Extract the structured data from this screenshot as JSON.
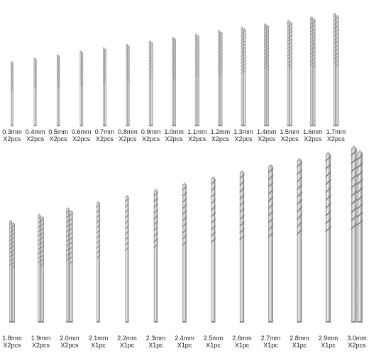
{
  "palette": {
    "background": "#ffffff",
    "metal_dark": "#8d8d8d",
    "metal_light": "#f2f2f2",
    "flute": "#6e6e6e"
  },
  "rows": [
    {
      "items": [
        {
          "size": "0.3mm",
          "qty": "X2pcs",
          "count": 2
        },
        {
          "size": "0.4mm",
          "qty": "X2pcs",
          "count": 2
        },
        {
          "size": "0.5mm",
          "qty": "X2pcs",
          "count": 2
        },
        {
          "size": "0.6mm",
          "qty": "X2pcs",
          "count": 2
        },
        {
          "size": "0.7mm",
          "qty": "X2pcs",
          "count": 2
        },
        {
          "size": "0.8mm",
          "qty": "X2pcs",
          "count": 2
        },
        {
          "size": "0.9mm",
          "qty": "X2pcs",
          "count": 2
        },
        {
          "size": "1.0mm",
          "qty": "X2pcs",
          "count": 2
        },
        {
          "size": "1.1mm",
          "qty": "X2pcs",
          "count": 2
        },
        {
          "size": "1.2mm",
          "qty": "X2pcs",
          "count": 2
        },
        {
          "size": "1.3mm",
          "qty": "X2pcs",
          "count": 2
        },
        {
          "size": "1.4mm",
          "qty": "X2pcs",
          "count": 2
        },
        {
          "size": "1.5mm",
          "qty": "X2pcs",
          "count": 2
        },
        {
          "size": "1.6mm",
          "qty": "X2pcs",
          "count": 2
        },
        {
          "size": "1.7mm",
          "qty": "X2pcs",
          "count": 2
        }
      ]
    },
    {
      "items": [
        {
          "size": "1.8mm",
          "qty": "X2pcs",
          "count": 2
        },
        {
          "size": "1.9mm",
          "qty": "X2pcs",
          "count": 2
        },
        {
          "size": "2.0mm",
          "qty": "X2pcs",
          "count": 2
        },
        {
          "size": "2.1mm",
          "qty": "X1pc",
          "count": 1
        },
        {
          "size": "2.2mm",
          "qty": "X1pc",
          "count": 1
        },
        {
          "size": "2.3mm",
          "qty": "X1pc",
          "count": 1
        },
        {
          "size": "2.4mm",
          "qty": "X1pc",
          "count": 1
        },
        {
          "size": "2.5mm",
          "qty": "X1pc",
          "count": 1
        },
        {
          "size": "2.6mm",
          "qty": "X1pc",
          "count": 1
        },
        {
          "size": "2.7mm",
          "qty": "X1pc",
          "count": 1
        },
        {
          "size": "2.8mm",
          "qty": "X1pc",
          "count": 1
        },
        {
          "size": "2.9mm",
          "qty": "X1pc",
          "count": 1
        },
        {
          "size": "3.0mm",
          "qty": "X2pcs",
          "count": 2
        }
      ]
    }
  ]
}
